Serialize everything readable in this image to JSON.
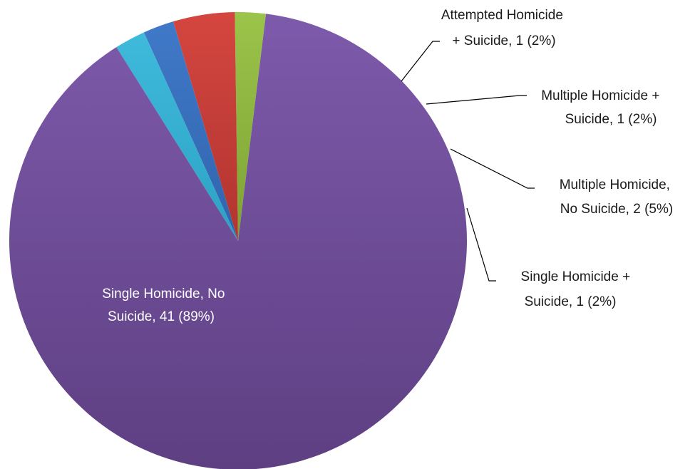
{
  "chart_data": {
    "type": "pie",
    "title": "",
    "start_angle_deg": 83,
    "direction": "counterclockwise",
    "slices": [
      {
        "label_lines": [
          "Single Homicide +",
          "Suicide, 1 (2%)"
        ],
        "name": "Single Homicide + Suicide",
        "value": 1,
        "percent": "2%",
        "color": "#8cb33e"
      },
      {
        "label_lines": [
          "Multiple Homicide,",
          "No Suicide, 2 (5%)"
        ],
        "name": "Multiple Homicide, No Suicide",
        "value": 2,
        "percent": "5%",
        "color": "#c9403b"
      },
      {
        "label_lines": [
          "Multiple Homicide +",
          "Suicide, 1 (2%)"
        ],
        "name": "Multiple Homicide + Suicide",
        "value": 1,
        "percent": "2%",
        "color": "#3b72c0"
      },
      {
        "label_lines": [
          "Attempted  Homicide",
          "+ Suicide, 1 (2%)"
        ],
        "name": "Attempted Homicide + Suicide",
        "value": 1,
        "percent": "2%",
        "color": "#35b0d2"
      },
      {
        "label_lines": [
          "Single Homicide, No",
          "Suicide, 41 (89%)"
        ],
        "name": "Single Homicide, No Suicide",
        "value": 41,
        "percent": "89%",
        "color": "#7a56a6"
      }
    ]
  }
}
